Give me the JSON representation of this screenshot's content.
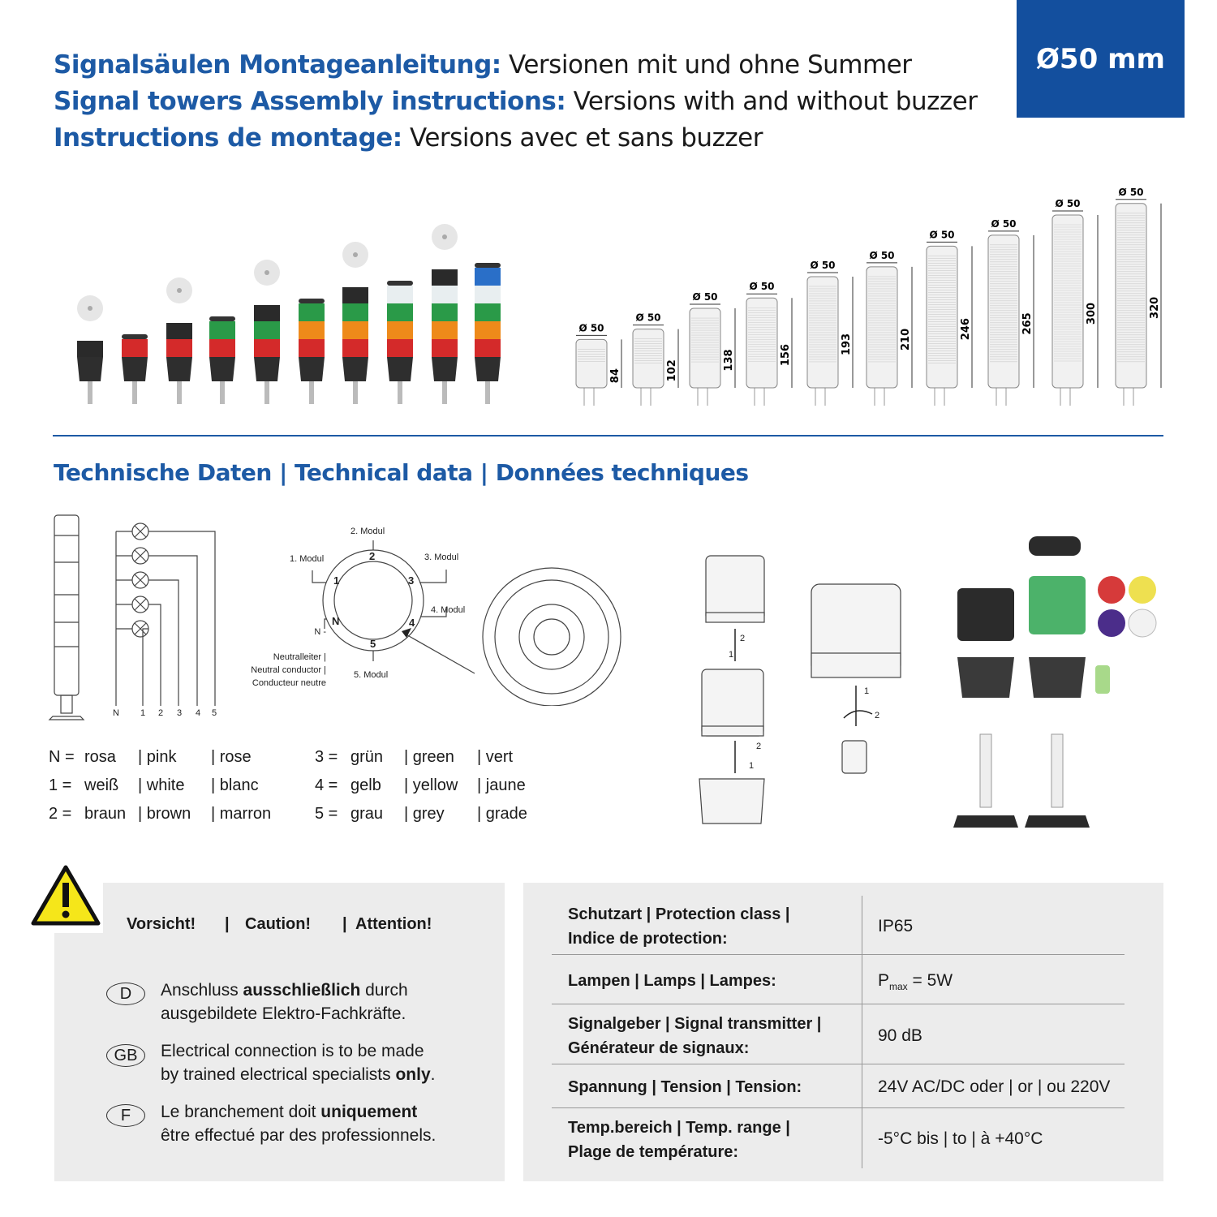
{
  "header": {
    "lines": [
      {
        "bold": "Signalsäulen Montageanleitung:",
        "normal": " Versionen mit und ohne Summer"
      },
      {
        "bold": "Signal towers Assembly instructions:",
        "normal": " Versions with and without buzzer"
      },
      {
        "bold": "Instructions de montage:",
        "normal": " Versions avec et sans buzzer"
      }
    ],
    "badge": "Ø50 mm",
    "accent": "#134f9e"
  },
  "products": [
    {
      "buzzer": true,
      "segments": []
    },
    {
      "buzzer": false,
      "segments": [
        "#d42a2a"
      ]
    },
    {
      "buzzer": true,
      "segments": [
        "#d42a2a"
      ]
    },
    {
      "buzzer": false,
      "segments": [
        "#d42a2a",
        "#2a9a48"
      ]
    },
    {
      "buzzer": true,
      "segments": [
        "#d42a2a",
        "#2a9a48"
      ]
    },
    {
      "buzzer": false,
      "segments": [
        "#d42a2a",
        "#ee8a1a",
        "#2a9a48"
      ]
    },
    {
      "buzzer": true,
      "segments": [
        "#d42a2a",
        "#ee8a1a",
        "#2a9a48"
      ]
    },
    {
      "buzzer": false,
      "segments": [
        "#d42a2a",
        "#ee8a1a",
        "#2a9a48",
        "#e8eef0"
      ]
    },
    {
      "buzzer": true,
      "segments": [
        "#d42a2a",
        "#ee8a1a",
        "#2a9a48",
        "#e8eef0"
      ]
    },
    {
      "buzzer": false,
      "segments": [
        "#d42a2a",
        "#ee8a1a",
        "#2a9a48",
        "#e8eef0",
        "#2a6fc8"
      ]
    }
  ],
  "dimensions": {
    "diameter_label": "Ø 50",
    "heights": [
      "84",
      "102",
      "138",
      "156",
      "193",
      "210",
      "246",
      "265",
      "300",
      "320"
    ]
  },
  "section_title": "Technische Daten | Technical data | Données techniques",
  "wiring": {
    "terminals": [
      "N",
      "1",
      "2",
      "3",
      "4",
      "5"
    ]
  },
  "ring": {
    "labels": [
      "1. Modul",
      "2. Modul",
      "3. Modul",
      "4. Modul",
      "5. Modul"
    ],
    "ring_numbers": [
      "1",
      "2",
      "3",
      "4",
      "5",
      "N"
    ],
    "neutral": [
      "N -",
      "Neutralleiter |",
      "Neutral conductor |",
      "Conducteur neutre"
    ]
  },
  "assembly": {
    "step_labels": [
      "2",
      "1",
      "2",
      "1",
      "1",
      "2"
    ]
  },
  "color_legend": [
    {
      "code": "N =",
      "de": "rosa",
      "en": "| pink",
      "fr": "| rose"
    },
    {
      "code": "1  =",
      "de": "weiß",
      "en": "| white",
      "fr": "| blanc"
    },
    {
      "code": "2  =",
      "de": "braun",
      "en": "| brown",
      "fr": "| marron"
    },
    {
      "code": "3  =",
      "de": "grün",
      "en": "| green",
      "fr": "| vert"
    },
    {
      "code": "4  =",
      "de": "gelb",
      "en": "| yellow",
      "fr": "| jaune"
    },
    {
      "code": "5  =",
      "de": "grau",
      "en": "| grey",
      "fr": "| grade"
    }
  ],
  "caution": {
    "title": [
      "Vorsicht!",
      "|",
      "Caution!",
      "|",
      "Attention!"
    ],
    "notes": [
      {
        "lang": "D",
        "pre": "Anschluss ",
        "bold": "ausschließlich",
        "post": " durch",
        "line2": "ausgebildete Elektro-Fachkräfte."
      },
      {
        "lang": "GB",
        "pre": "Electrical connection is to be made",
        "bold": "",
        "post": "",
        "line2pre": "by trained electrical specialists ",
        "line2bold": "only",
        "line2post": "."
      },
      {
        "lang": "F",
        "pre": "Le branchement doit ",
        "bold": "uniquement",
        "post": "",
        "line2": "être effectué par des professionnels."
      }
    ]
  },
  "specs": [
    {
      "label": [
        "Schutzart | Protection class |",
        "Indice de protection:"
      ],
      "value": "IP65"
    },
    {
      "label": [
        "Lampen | Lamps | Lampes:"
      ],
      "value_pre": "P",
      "value_sub": "max",
      "value_post": " = 5W"
    },
    {
      "label": [
        "Signalgeber | Signal transmitter |",
        "Générateur de signaux:"
      ],
      "value": "90 dB"
    },
    {
      "label": [
        "Spannung | Tension | Tension:"
      ],
      "value": "24V AC/DC oder | or | ou 220V"
    },
    {
      "label": [
        "Temp.bereich | Temp. range |",
        "Plage de température:"
      ],
      "value": "-5°C bis | to | à  +40°C"
    }
  ]
}
